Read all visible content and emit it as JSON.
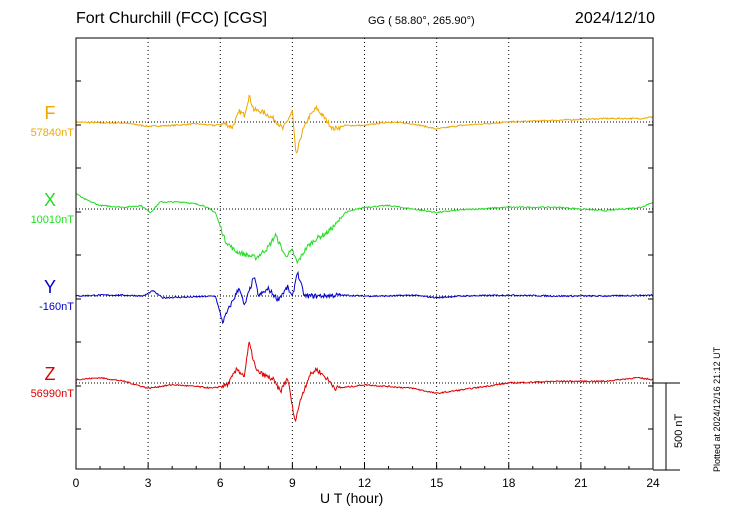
{
  "header": {
    "title": "Fort Churchill (FCC)  [CGS]",
    "coords": "GG ( 58.80°, 265.90°)",
    "date": "2024/12/10"
  },
  "footer": {
    "plotted": "Plotted at 2024/12/16 21:12 UT"
  },
  "chart_data": {
    "type": "line",
    "xlabel": "U T (hour)",
    "xlim": [
      0,
      24
    ],
    "xticks": [
      "0",
      "3",
      "6",
      "9",
      "12",
      "15",
      "18",
      "21",
      "24"
    ],
    "grid": true,
    "scale_bar": {
      "value_nT": 500,
      "label": "500 nT"
    },
    "series": [
      {
        "name": "F",
        "baseline_label": "57840nT",
        "baseline_nT": 57840,
        "color": "#f0a800",
        "offset_points": [
          [
            0,
            0
          ],
          [
            1,
            -5
          ],
          [
            2,
            -5
          ],
          [
            3,
            -25
          ],
          [
            4,
            -20
          ],
          [
            5,
            -10
          ],
          [
            5.7,
            -20
          ],
          [
            6.2,
            -10
          ],
          [
            6.5,
            -30
          ],
          [
            6.8,
            60
          ],
          [
            7.0,
            40
          ],
          [
            7.2,
            150
          ],
          [
            7.4,
            70
          ],
          [
            7.7,
            60
          ],
          [
            8.0,
            40
          ],
          [
            8.3,
            10
          ],
          [
            8.6,
            -40
          ],
          [
            8.8,
            10
          ],
          [
            9.0,
            60
          ],
          [
            9.15,
            -200
          ],
          [
            9.4,
            -60
          ],
          [
            9.7,
            30
          ],
          [
            10.0,
            80
          ],
          [
            10.3,
            30
          ],
          [
            10.7,
            -40
          ],
          [
            11.2,
            -20
          ],
          [
            12,
            -20
          ],
          [
            13,
            0
          ],
          [
            14,
            -10
          ],
          [
            15,
            -40
          ],
          [
            16,
            -20
          ],
          [
            18,
            0
          ],
          [
            20,
            10
          ],
          [
            22,
            20
          ],
          [
            23.5,
            20
          ],
          [
            24,
            30
          ]
        ]
      },
      {
        "name": "X",
        "baseline_label": "10010nT",
        "baseline_nT": 10010,
        "color": "#22dd22",
        "offset_points": [
          [
            0,
            90
          ],
          [
            0.3,
            60
          ],
          [
            1,
            20
          ],
          [
            2,
            10
          ],
          [
            2.7,
            20
          ],
          [
            3.1,
            -20
          ],
          [
            3.5,
            40
          ],
          [
            4.5,
            40
          ],
          [
            5.3,
            20
          ],
          [
            5.8,
            -20
          ],
          [
            6.2,
            -180
          ],
          [
            6.6,
            -240
          ],
          [
            7.0,
            -260
          ],
          [
            7.5,
            -280
          ],
          [
            8.0,
            -220
          ],
          [
            8.3,
            -150
          ],
          [
            8.7,
            -270
          ],
          [
            9.0,
            -240
          ],
          [
            9.2,
            -310
          ],
          [
            9.6,
            -220
          ],
          [
            10.0,
            -170
          ],
          [
            10.4,
            -140
          ],
          [
            10.8,
            -90
          ],
          [
            11.2,
            -20
          ],
          [
            12,
            10
          ],
          [
            13,
            20
          ],
          [
            14,
            0
          ],
          [
            15,
            -20
          ],
          [
            16,
            -5
          ],
          [
            18,
            10
          ],
          [
            20,
            10
          ],
          [
            22,
            -10
          ],
          [
            23.5,
            10
          ],
          [
            24,
            40
          ]
        ]
      },
      {
        "name": "Y",
        "baseline_label": "-160nT",
        "baseline_nT": -160,
        "color": "#0000cc",
        "offset_points": [
          [
            0,
            0
          ],
          [
            1,
            5
          ],
          [
            2,
            5
          ],
          [
            2.8,
            0
          ],
          [
            3.2,
            30
          ],
          [
            3.6,
            -10
          ],
          [
            5.0,
            -5
          ],
          [
            5.8,
            0
          ],
          [
            6.1,
            -150
          ],
          [
            6.4,
            -60
          ],
          [
            6.8,
            50
          ],
          [
            7.0,
            -60
          ],
          [
            7.4,
            110
          ],
          [
            7.6,
            0
          ],
          [
            8.0,
            40
          ],
          [
            8.4,
            -20
          ],
          [
            8.8,
            50
          ],
          [
            9.0,
            -10
          ],
          [
            9.2,
            140
          ],
          [
            9.5,
            0
          ],
          [
            10,
            0
          ],
          [
            11,
            5
          ],
          [
            12,
            0
          ],
          [
            13,
            0
          ],
          [
            14,
            5
          ],
          [
            15,
            -10
          ],
          [
            16,
            0
          ],
          [
            18,
            5
          ],
          [
            20,
            0
          ],
          [
            22,
            0
          ],
          [
            24,
            5
          ]
        ]
      },
      {
        "name": "Z",
        "baseline_label": "56990nT",
        "baseline_nT": 56990,
        "color": "#dd0000",
        "offset_points": [
          [
            0,
            20
          ],
          [
            1,
            30
          ],
          [
            2,
            10
          ],
          [
            2.5,
            -10
          ],
          [
            3,
            -30
          ],
          [
            4,
            -10
          ],
          [
            5,
            -20
          ],
          [
            5.7,
            -30
          ],
          [
            6.3,
            -10
          ],
          [
            6.7,
            80
          ],
          [
            7.0,
            40
          ],
          [
            7.2,
            230
          ],
          [
            7.5,
            70
          ],
          [
            7.9,
            40
          ],
          [
            8.2,
            20
          ],
          [
            8.5,
            -50
          ],
          [
            8.8,
            30
          ],
          [
            9.1,
            -220
          ],
          [
            9.4,
            -70
          ],
          [
            9.7,
            40
          ],
          [
            10.0,
            80
          ],
          [
            10.4,
            30
          ],
          [
            10.8,
            -30
          ],
          [
            11.5,
            -20
          ],
          [
            12,
            -10
          ],
          [
            13,
            -20
          ],
          [
            14,
            -30
          ],
          [
            15,
            -60
          ],
          [
            16,
            -40
          ],
          [
            17,
            -20
          ],
          [
            18,
            0
          ],
          [
            20,
            10
          ],
          [
            22,
            10
          ],
          [
            23.3,
            30
          ],
          [
            24,
            20
          ]
        ]
      }
    ]
  }
}
